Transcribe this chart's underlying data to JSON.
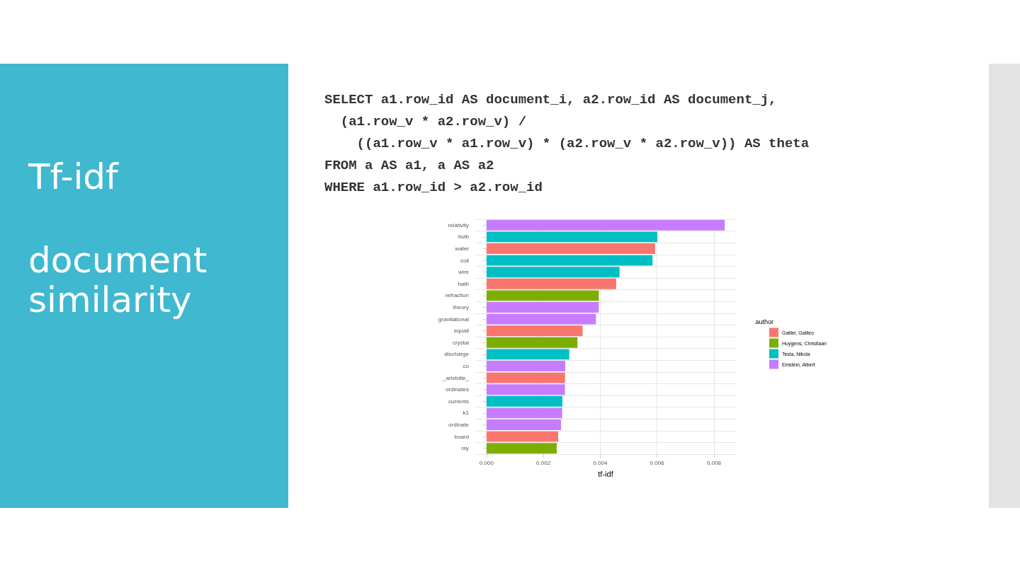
{
  "chart_data": {
    "type": "bar",
    "orientation": "horizontal",
    "stacked": true,
    "title": "Tf-idf",
    "subtitle": "document similarity",
    "annotations": [
      "SELECT a1.row_id AS document_i, a2.row_id AS document_j,\n  (a1.row_v * a2.row_v) /\n    ((a1.row_v * a1.row_v) * (a2.row_v * a2.row_v)) AS theta\nFROM a AS a1, a AS a2\nWHERE a1.row_id > a2.row_id"
    ],
    "categories": [
      "relativity",
      "bulb",
      "water",
      "coil",
      "wire",
      "hath",
      "refraction",
      "theory",
      "gravitational",
      "equall",
      "crystal",
      "discharge",
      "co",
      "_aristotle_",
      "ordinates",
      "currents",
      "k1",
      "ordinate",
      "board",
      "ray"
    ],
    "series": [
      {
        "name": "Galilei, Galileo",
        "color": "#f8766d",
        "values": [
          null,
          null,
          0.00593,
          null,
          null,
          0.00456,
          null,
          null,
          null,
          0.00338,
          null,
          null,
          null,
          0.00276,
          null,
          null,
          null,
          null,
          0.00252,
          null
        ]
      },
      {
        "name": "Huygens, Christiaan",
        "color": "#7cae00",
        "values": [
          null,
          null,
          null,
          null,
          null,
          null,
          0.00395,
          null,
          null,
          null,
          0.0032,
          null,
          null,
          null,
          null,
          null,
          null,
          null,
          null,
          0.00247
        ]
      },
      {
        "name": "Tesla, Nikola",
        "color": "#00bfc4",
        "values": [
          null,
          0.00601,
          null,
          0.00584,
          0.00468,
          null,
          null,
          null,
          null,
          null,
          null,
          0.00291,
          null,
          null,
          null,
          0.00267,
          null,
          null,
          null,
          null
        ]
      },
      {
        "name": "Einstein, Albert",
        "color": "#c77cff",
        "values": [
          0.00838,
          null,
          null,
          null,
          null,
          null,
          null,
          0.00395,
          0.00385,
          null,
          null,
          null,
          0.00277,
          null,
          0.00276,
          null,
          0.00266,
          0.00262,
          null,
          null
        ]
      }
    ],
    "xlabel": "tf-idf",
    "legend_title": "author",
    "legend": "right",
    "grid": true,
    "xlim": [
      -0.00042,
      0.0088
    ],
    "xticks": [
      {
        "value": 0,
        "label": "0.000"
      },
      {
        "value": 0.002,
        "label": "0.002"
      },
      {
        "value": 0.004,
        "label": "0.004"
      },
      {
        "value": 0.006,
        "label": "0.006"
      },
      {
        "value": 0.008,
        "label": "0.008"
      }
    ]
  }
}
